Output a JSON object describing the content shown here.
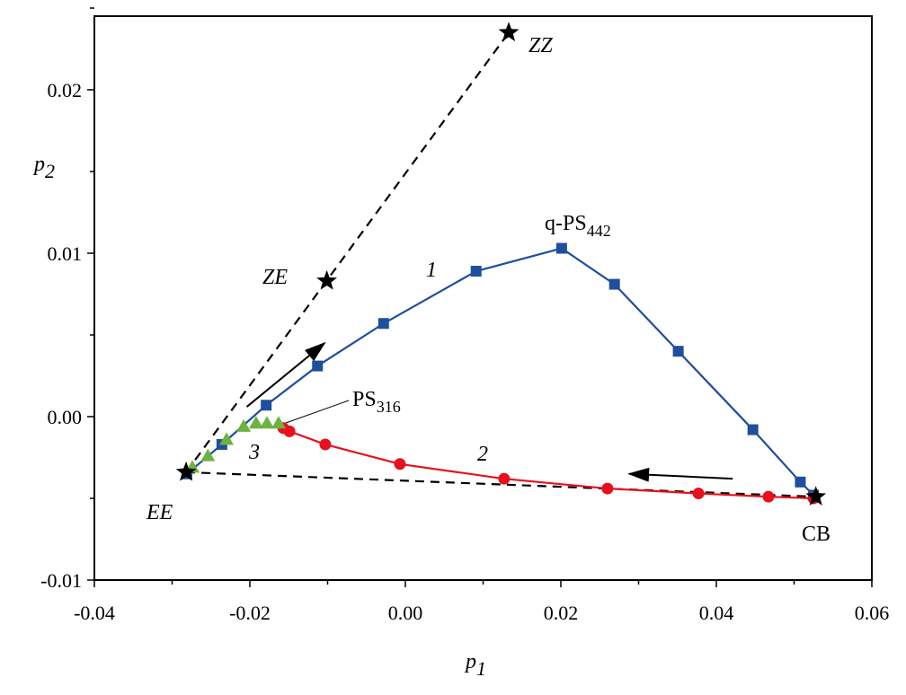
{
  "chart_data": {
    "type": "line",
    "title": "",
    "xlabel": "p1",
    "ylabel": "p2",
    "xlim": [
      -0.04,
      0.06
    ],
    "ylim": [
      -0.01,
      0.025
    ],
    "xticks": [
      "-0.04",
      "-0.02",
      "0.00",
      "0.02",
      "0.04",
      "0.06"
    ],
    "xtick_values": [
      -0.04,
      -0.02,
      0.0,
      0.02,
      0.04,
      0.06
    ],
    "yticks": [
      "-0.01",
      "0.00",
      "0.01",
      "0.02"
    ],
    "ytick_values": [
      -0.01,
      0.0,
      0.01,
      0.02
    ],
    "grid": false,
    "series": [
      {
        "name": "1",
        "marker": "square",
        "color": "#1f4e9c",
        "x": [
          -0.0281,
          -0.0236,
          -0.0179,
          -0.0113,
          -0.0028,
          0.0091,
          0.0201,
          0.0269,
          0.0351,
          0.0447,
          0.0508,
          0.0525
        ],
        "y": [
          -0.0035,
          -0.0017,
          0.0007,
          0.0031,
          0.0057,
          0.0089,
          0.0103,
          0.0081,
          0.004,
          -0.0008,
          -0.004,
          -0.0048
        ]
      },
      {
        "name": "2",
        "marker": "circle",
        "color": "#e8101c",
        "x": [
          -0.0157,
          -0.0149,
          -0.0103,
          -0.0007,
          0.0127,
          0.026,
          0.0377,
          0.0467,
          0.0525
        ],
        "y": [
          -0.0007,
          -0.0009,
          -0.0017,
          -0.0029,
          -0.0038,
          -0.0044,
          -0.0047,
          -0.0049,
          -0.005
        ]
      },
      {
        "name": "3",
        "marker": "triangle",
        "color": "#6db33f",
        "x": [
          -0.0274,
          -0.0254,
          -0.023,
          -0.0208,
          -0.0192,
          -0.0178,
          -0.0163
        ],
        "y": [
          -0.0031,
          -0.0024,
          -0.0014,
          -0.0006,
          -0.0004,
          -0.0004,
          -0.0004
        ]
      }
    ],
    "stars": [
      {
        "name": "EE",
        "x": -0.0282,
        "y": -0.0034
      },
      {
        "name": "ZE",
        "x": -0.0101,
        "y": 0.0083
      },
      {
        "name": "ZZ",
        "x": 0.0133,
        "y": 0.0235
      },
      {
        "name": "CB",
        "x": 0.0528,
        "y": -0.0049
      }
    ],
    "dashed_lines": [
      [
        "EE",
        "ZZ"
      ],
      [
        "EE",
        "CB"
      ]
    ],
    "arrows": [
      {
        "from": [
          -0.0204,
          0.0006
        ],
        "to": [
          -0.0104,
          0.0045
        ]
      },
      {
        "from": [
          0.0421,
          -0.0038
        ],
        "to": [
          0.0288,
          -0.0035
        ]
      }
    ],
    "annotations": {
      "q_ps": {
        "main": "q-PS",
        "sub": "442"
      },
      "ps": {
        "main": "PS",
        "sub": "316"
      },
      "curve1": "1",
      "curve2": "2",
      "curve3": "3"
    }
  }
}
